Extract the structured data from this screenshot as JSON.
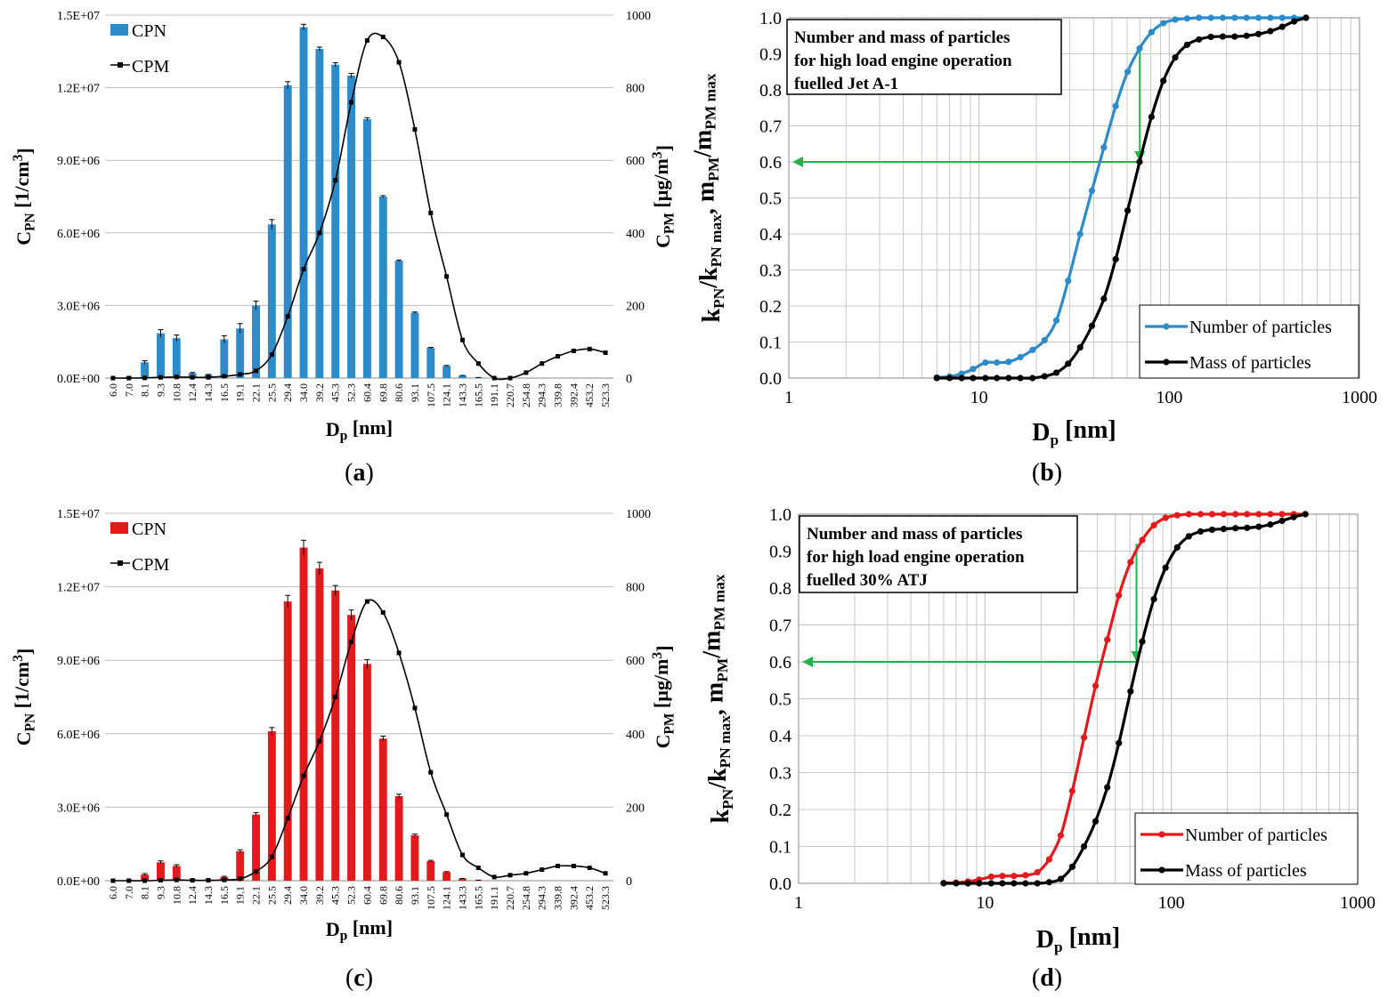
{
  "chart_data": [
    {
      "panel": "a",
      "panel_label": "(a)",
      "type": "bar",
      "categories": [
        "6.0",
        "7.0",
        "8.1",
        "9.3",
        "10.8",
        "12.4",
        "14.3",
        "16.5",
        "19.1",
        "22.1",
        "25.5",
        "29.4",
        "34.0",
        "39.2",
        "45.3",
        "52.3",
        "60.4",
        "69.8",
        "80.6",
        "93.1",
        "107.5",
        "124.1",
        "143.3",
        "165.5",
        "191.1",
        "220.7",
        "254.8",
        "294.3",
        "339.8",
        "392.4",
        "453.2",
        "523.3"
      ],
      "series": [
        {
          "name": "CPN",
          "axis": "left",
          "color": "#2e8bc9",
          "values": [
            0,
            30000,
            650000,
            1850000,
            1650000,
            200000,
            130000,
            1600000,
            2050000,
            3000000,
            6350000,
            12100000,
            14500000,
            13600000,
            12950000,
            12500000,
            10700000,
            7500000,
            4850000,
            2700000,
            1250000,
            500000,
            100000,
            20000,
            0,
            0,
            0,
            0,
            0,
            0,
            0,
            0
          ],
          "errors": [
            0,
            20000,
            70000,
            150000,
            130000,
            30000,
            20000,
            150000,
            200000,
            180000,
            200000,
            150000,
            120000,
            80000,
            80000,
            90000,
            60000,
            40000,
            30000,
            30000,
            20000,
            20000,
            10000,
            5000,
            0,
            0,
            0,
            0,
            0,
            0,
            0,
            0
          ]
        },
        {
          "name": "CPM",
          "axis": "right",
          "color": "#000000",
          "values": [
            0,
            0,
            0.5,
            2,
            3,
            2,
            2,
            5,
            10,
            20,
            65,
            170,
            300,
            400,
            545,
            760,
            930,
            940,
            870,
            685,
            455,
            280,
            105,
            40,
            0,
            0,
            15,
            40,
            60,
            75,
            80,
            70
          ]
        }
      ],
      "ylabel_left": "C",
      "ylabel_left_sub": "PN",
      "ylabel_left_unit": "[1/cm",
      "ylabel_left_sup": "3",
      "ylabel_left_end": "]",
      "ylabel_right": "C",
      "ylabel_right_sub": "PM",
      "ylabel_right_unit": "[µg/m",
      "ylabel_right_sup": "3",
      "ylabel_right_end": "]",
      "xlabel": "D",
      "xlabel_sub": "p",
      "xlabel_unit": "[nm]",
      "left_ticks": [
        "0.0E+00",
        "3.0E+06",
        "6.0E+06",
        "9.0E+06",
        "1.2E+07",
        "1.5E+07"
      ],
      "right_ticks": [
        "0",
        "200",
        "400",
        "600",
        "800",
        "1000"
      ],
      "ylim_left": [
        0,
        15000000
      ],
      "ylim_right": [
        0,
        1000
      ]
    },
    {
      "panel": "b",
      "panel_label": "(b)",
      "type": "line",
      "xscale": "log",
      "xlim": [
        1,
        1000
      ],
      "ylim": [
        0,
        1
      ],
      "x_ticks": [
        "1",
        "10",
        "100",
        "1000"
      ],
      "y_ticks": [
        "0.0",
        "0.1",
        "0.2",
        "0.3",
        "0.4",
        "0.5",
        "0.6",
        "0.7",
        "0.8",
        "0.9",
        "1.0"
      ],
      "note": [
        "Number and mass of particles",
        "for high load engine operation",
        "fuelled Jet A-1"
      ],
      "legend": [
        "Number of particles",
        "Mass of particles"
      ],
      "legend_position": "bottom-right",
      "ylabel_parts": [
        "k",
        "PN",
        "/k",
        "PN max",
        ", m",
        "PM",
        "/m",
        "PM max"
      ],
      "xlabel": "D",
      "xlabel_sub": "p",
      "xlabel_unit": "[nm]",
      "annotation": {
        "type": "arrow",
        "color": "#22b14c",
        "from_x": 70,
        "to_y": 0.6
      },
      "series": [
        {
          "name": "Number of particles",
          "color": "#2e8bc9",
          "x": [
            6.0,
            7.0,
            8.1,
            9.3,
            10.8,
            12.4,
            14.3,
            16.5,
            19.1,
            22.1,
            25.5,
            29.4,
            34.0,
            39.2,
            45.3,
            52.3,
            60.4,
            69.8,
            80.6,
            93.1,
            107.5,
            124.1,
            143.3,
            165.5,
            191.1,
            220.7,
            254.8,
            294.3,
            339.8,
            392.4,
            453.2,
            523.3
          ],
          "y": [
            0.002,
            0.004,
            0.012,
            0.025,
            0.043,
            0.043,
            0.045,
            0.058,
            0.078,
            0.105,
            0.16,
            0.27,
            0.4,
            0.52,
            0.64,
            0.755,
            0.85,
            0.915,
            0.96,
            0.985,
            0.995,
            0.998,
            1.0,
            1.0,
            1.0,
            1.0,
            1.0,
            1.0,
            1.0,
            1.0,
            1.0,
            1.0
          ]
        },
        {
          "name": "Mass of particles",
          "color": "#000000",
          "x": [
            6.0,
            7.0,
            8.1,
            9.3,
            10.8,
            12.4,
            14.3,
            16.5,
            19.1,
            22.1,
            25.5,
            29.4,
            34.0,
            39.2,
            45.3,
            52.3,
            60.4,
            69.8,
            80.6,
            93.1,
            107.5,
            124.1,
            143.3,
            165.5,
            191.1,
            220.7,
            254.8,
            294.3,
            339.8,
            392.4,
            453.2,
            523.3
          ],
          "y": [
            0.0,
            0.0,
            0.0,
            0.0,
            0.0,
            0.0,
            0.0,
            0.0,
            0.0,
            0.005,
            0.015,
            0.04,
            0.085,
            0.145,
            0.22,
            0.33,
            0.465,
            0.6,
            0.725,
            0.825,
            0.89,
            0.925,
            0.94,
            0.947,
            0.948,
            0.948,
            0.95,
            0.955,
            0.963,
            0.975,
            0.99,
            1.0
          ]
        }
      ]
    },
    {
      "panel": "c",
      "panel_label": "(c)",
      "type": "bar",
      "categories": [
        "6.0",
        "7.0",
        "8.1",
        "9.3",
        "10.8",
        "12.4",
        "14.3",
        "16.5",
        "19.1",
        "22.1",
        "25.5",
        "29.4",
        "34.0",
        "39.2",
        "45.3",
        "52.3",
        "60.4",
        "69.8",
        "80.6",
        "93.1",
        "107.5",
        "124.1",
        "143.3",
        "165.5",
        "191.1",
        "220.7",
        "254.8",
        "294.3",
        "339.8",
        "392.4",
        "453.2",
        "523.3"
      ],
      "series": [
        {
          "name": "CPN",
          "axis": "left",
          "color": "#e31a1c",
          "values": [
            0,
            20000,
            250000,
            750000,
            600000,
            50000,
            30000,
            150000,
            1200000,
            2700000,
            6100000,
            11400000,
            13600000,
            12750000,
            11850000,
            10850000,
            8850000,
            5800000,
            3450000,
            1850000,
            800000,
            350000,
            80000,
            20000,
            0,
            0,
            0,
            0,
            0,
            0,
            0,
            0
          ],
          "errors": [
            0,
            10000,
            40000,
            60000,
            50000,
            10000,
            10000,
            30000,
            60000,
            80000,
            150000,
            250000,
            300000,
            250000,
            200000,
            200000,
            180000,
            100000,
            80000,
            50000,
            30000,
            20000,
            10000,
            5000,
            0,
            0,
            0,
            0,
            0,
            0,
            0,
            0
          ]
        },
        {
          "name": "CPM",
          "axis": "right",
          "color": "#000000",
          "values": [
            0,
            0,
            0,
            1,
            2,
            1,
            1,
            2,
            5,
            25,
            65,
            170,
            285,
            380,
            500,
            650,
            760,
            730,
            620,
            470,
            295,
            180,
            70,
            35,
            10,
            15,
            20,
            30,
            40,
            40,
            35,
            20
          ]
        }
      ],
      "ylabel_left": "C",
      "ylabel_left_sub": "PN",
      "ylabel_left_unit": "[1/cm",
      "ylabel_left_sup": "3",
      "ylabel_left_end": "]",
      "ylabel_right": "C",
      "ylabel_right_sub": "PM",
      "ylabel_right_unit": "[µg/m",
      "ylabel_right_sup": "3",
      "ylabel_right_end": "]",
      "xlabel": "D",
      "xlabel_sub": "p",
      "xlabel_unit": "[nm]",
      "left_ticks": [
        "0.0E+00",
        "3.0E+06",
        "6.0E+06",
        "9.0E+06",
        "1.2E+07",
        "1.5E+07"
      ],
      "right_ticks": [
        "0",
        "200",
        "400",
        "600",
        "800",
        "1000"
      ],
      "ylim_left": [
        0,
        15000000
      ],
      "ylim_right": [
        0,
        1000
      ]
    },
    {
      "panel": "d",
      "panel_label": "(d)",
      "type": "line",
      "xscale": "log",
      "xlim": [
        1,
        1000
      ],
      "ylim": [
        0,
        1
      ],
      "x_ticks": [
        "1",
        "10",
        "100",
        "1000"
      ],
      "y_ticks": [
        "0.0",
        "0.1",
        "0.2",
        "0.3",
        "0.4",
        "0.5",
        "0.6",
        "0.7",
        "0.8",
        "0.9",
        "1.0"
      ],
      "note": [
        "Number and mass of particles",
        "for high load engine operation",
        "fuelled 30% ATJ"
      ],
      "legend": [
        "Number of particles",
        "Mass of particles"
      ],
      "legend_position": "bottom-right",
      "ylabel_parts": [
        "k",
        "PN",
        "/k",
        "PN max",
        ", m",
        "PM",
        "/m",
        "PM max"
      ],
      "xlabel": "D",
      "xlabel_sub": "p",
      "xlabel_unit": "[nm]",
      "annotation": {
        "type": "arrow",
        "color": "#22b14c",
        "from_x": 65,
        "to_y": 0.6
      },
      "series": [
        {
          "name": "Number of particles",
          "color": "#e31a1c",
          "x": [
            6.0,
            7.0,
            8.1,
            9.3,
            10.8,
            12.4,
            14.3,
            16.5,
            19.1,
            22.1,
            25.5,
            29.4,
            34.0,
            39.2,
            45.3,
            52.3,
            60.4,
            69.8,
            80.6,
            93.1,
            107.5,
            124.1,
            143.3,
            165.5,
            191.1,
            220.7,
            254.8,
            294.3,
            339.8,
            392.4,
            453.2,
            523.3
          ],
          "y": [
            0.001,
            0.002,
            0.005,
            0.01,
            0.018,
            0.02,
            0.02,
            0.022,
            0.03,
            0.065,
            0.13,
            0.25,
            0.395,
            0.535,
            0.66,
            0.78,
            0.87,
            0.93,
            0.97,
            0.99,
            0.997,
            1.0,
            1.0,
            1.0,
            1.0,
            1.0,
            1.0,
            1.0,
            1.0,
            1.0,
            1.0,
            1.0
          ]
        },
        {
          "name": "Mass of particles",
          "color": "#000000",
          "x": [
            6.0,
            7.0,
            8.1,
            9.3,
            10.8,
            12.4,
            14.3,
            16.5,
            19.1,
            22.1,
            25.5,
            29.4,
            34.0,
            39.2,
            45.3,
            52.3,
            60.4,
            69.8,
            80.6,
            93.1,
            107.5,
            124.1,
            143.3,
            165.5,
            191.1,
            220.7,
            254.8,
            294.3,
            339.8,
            392.4,
            453.2,
            523.3
          ],
          "y": [
            0.0,
            0.0,
            0.0,
            0.0,
            0.0,
            0.0,
            0.0,
            0.0,
            0.0,
            0.003,
            0.012,
            0.045,
            0.1,
            0.168,
            0.26,
            0.38,
            0.52,
            0.655,
            0.77,
            0.855,
            0.91,
            0.94,
            0.953,
            0.958,
            0.96,
            0.962,
            0.963,
            0.966,
            0.972,
            0.982,
            0.992,
            1.0
          ]
        }
      ]
    }
  ]
}
